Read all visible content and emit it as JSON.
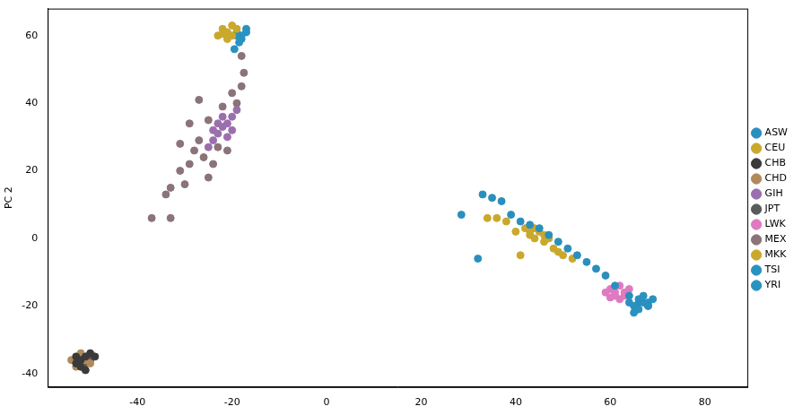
{
  "chart_data": {
    "type": "scatter",
    "y_label": "PC 2",
    "xlim": [
      -59,
      89
    ],
    "ylim": [
      -44,
      68
    ],
    "xticks": [
      -40,
      -20,
      0,
      20,
      40,
      60,
      80
    ],
    "yticks": [
      -40,
      -20,
      0,
      20,
      40,
      60
    ],
    "grid": false,
    "legend": "right",
    "series": [
      {
        "name": "ASW",
        "color": "#2a8fbd",
        "marker": "circle",
        "x": [
          28.5,
          32,
          33,
          35,
          37,
          39,
          41,
          43,
          45,
          47,
          49,
          51,
          53,
          55,
          57,
          59,
          61,
          64,
          66,
          68
        ],
        "y": [
          7,
          -6,
          13,
          12,
          11,
          7,
          5,
          4,
          3,
          1,
          -1,
          -3,
          -5,
          -7,
          -9,
          -11,
          -14,
          -17,
          -19,
          -20
        ]
      },
      {
        "name": "CEU",
        "color": "#c9a82c",
        "marker": "circle",
        "x": [
          -22,
          -21,
          -20,
          -23,
          -21,
          -19,
          -22,
          -20
        ],
        "y": [
          62,
          61,
          63,
          60,
          59,
          62,
          60.5,
          60
        ]
      },
      {
        "name": "CHB",
        "color": "#3a3a3a",
        "marker": "circle",
        "x": [
          -52,
          -51,
          -53,
          -50,
          -52,
          -49,
          -51,
          -53
        ],
        "y": [
          -36,
          -35,
          -37,
          -34,
          -38,
          -35,
          -39,
          -35
        ]
      },
      {
        "name": "CHD",
        "color": "#b08a5a",
        "marker": "circle",
        "x": [
          -52,
          -51,
          -54,
          -50,
          -52,
          -53
        ],
        "y": [
          -37,
          -36,
          -36,
          -37,
          -34,
          -38
        ]
      },
      {
        "name": "GIH",
        "color": "#9b6fae",
        "marker": "circle",
        "x": [
          -24,
          -23,
          -22,
          -21,
          -20,
          -23,
          -21,
          -25,
          -19,
          -22,
          -24,
          -20
        ],
        "y": [
          29,
          31,
          33,
          34,
          36,
          34,
          30,
          27,
          38,
          36,
          32,
          32
        ]
      },
      {
        "name": "JPT",
        "color": "#5a5a5a",
        "marker": "circle",
        "x": [
          -52,
          -51,
          -53,
          -50,
          -52
        ],
        "y": [
          -36.5,
          -37,
          -36,
          -36,
          -35
        ]
      },
      {
        "name": "LWK",
        "color": "#e07ac0",
        "marker": "circle",
        "x": [
          59,
          60,
          61,
          62,
          63,
          62,
          64,
          61,
          60,
          63
        ],
        "y": [
          -16,
          -15,
          -17,
          -14,
          -16,
          -18,
          -15,
          -16,
          -17.5,
          -17
        ]
      },
      {
        "name": "MEX",
        "color": "#8a7379",
        "marker": "circle",
        "x": [
          -37,
          -33,
          -34,
          -33,
          -31,
          -30,
          -29,
          -28,
          -27,
          -27,
          -26,
          -25,
          -25,
          -24,
          -23,
          -22,
          -21,
          -20,
          -19,
          -18,
          -17.5,
          -18,
          -29,
          -31
        ],
        "y": [
          6,
          6,
          13,
          15,
          20,
          16,
          22,
          26,
          41,
          29,
          24,
          18,
          35,
          22,
          27,
          39,
          26,
          43,
          40,
          45,
          49,
          54,
          34,
          28
        ]
      },
      {
        "name": "MKK",
        "color": "#c9a82c",
        "marker": "circle",
        "x": [
          34,
          36,
          38,
          40,
          41,
          42,
          43,
          44,
          45,
          46,
          47,
          48,
          49,
          50,
          52,
          43,
          44,
          46
        ],
        "y": [
          6,
          6,
          5,
          2,
          -5,
          3,
          1,
          0,
          2,
          -1,
          0,
          -3,
          -4,
          -5,
          -6,
          2,
          3,
          1
        ]
      },
      {
        "name": "TSI",
        "color": "#2a92c0",
        "marker": "circle",
        "x": [
          -19,
          -18,
          -17,
          -18,
          -19,
          -17,
          -18.5,
          -19.5
        ],
        "y": [
          61,
          60,
          61,
          59,
          60,
          62,
          58,
          56
        ]
      },
      {
        "name": "YRI",
        "color": "#2a92c0",
        "marker": "circle",
        "x": [
          64,
          65,
          66,
          67,
          68,
          69,
          66,
          65,
          67,
          68
        ],
        "y": [
          -19,
          -20,
          -18,
          -19,
          -20,
          -18,
          -21,
          -22,
          -17,
          -19
        ]
      }
    ]
  }
}
